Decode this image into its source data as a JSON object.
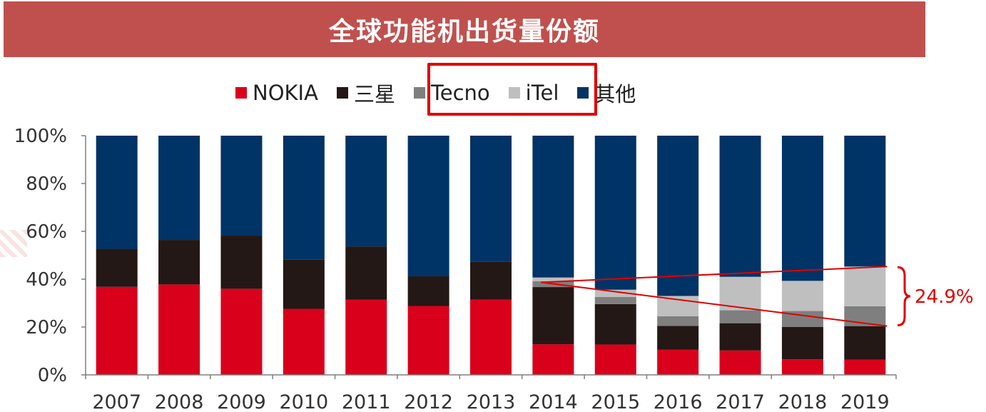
{
  "title": "全球功能机出货量份额",
  "legend": [
    {
      "name": "NOKIA",
      "color": "#d9001b"
    },
    {
      "name": "三星",
      "color": "#231815"
    },
    {
      "name": "Tecno",
      "color": "#7f7f7f"
    },
    {
      "name": "iTel",
      "color": "#bfbfbf"
    },
    {
      "name": "其他",
      "color": "#003366"
    }
  ],
  "annotation": {
    "label": "24.9%"
  },
  "chart_data": {
    "type": "bar",
    "stacked": true,
    "categories": [
      "2007",
      "2008",
      "2009",
      "2010",
      "2011",
      "2012",
      "2013",
      "2014",
      "2015",
      "2016",
      "2017",
      "2018",
      "2019"
    ],
    "series": [
      {
        "name": "NOKIA",
        "color": "#d9001b",
        "values": [
          36.8,
          37.8,
          36.0,
          27.6,
          31.5,
          28.8,
          31.4,
          12.8,
          12.7,
          10.6,
          10.2,
          6.5,
          6.4
        ]
      },
      {
        "name": "三星",
        "color": "#231815",
        "values": [
          15.9,
          18.6,
          22.2,
          20.5,
          22.2,
          12.4,
          16.0,
          23.9,
          16.9,
          9.9,
          11.4,
          13.5,
          14.0
        ]
      },
      {
        "name": "Tecno",
        "color": "#7f7f7f",
        "values": [
          0,
          0,
          0,
          0,
          0,
          0,
          0,
          2.5,
          3.0,
          4.0,
          5.4,
          6.7,
          8.3
        ]
      },
      {
        "name": "iTel",
        "color": "#bfbfbf",
        "values": [
          0,
          0,
          0,
          0,
          0,
          0,
          0,
          1.5,
          3.0,
          8.5,
          14.0,
          12.6,
          16.6
        ]
      },
      {
        "name": "其他",
        "color": "#003366",
        "values": [
          47.3,
          43.6,
          41.8,
          51.9,
          46.3,
          58.8,
          52.6,
          59.3,
          64.4,
          67.0,
          59.0,
          60.7,
          54.7
        ]
      }
    ],
    "yticks": [
      "0%",
      "20%",
      "40%",
      "60%",
      "80%",
      "100%"
    ],
    "ylim": [
      0,
      100
    ],
    "grid": false,
    "legend_position": "top"
  }
}
